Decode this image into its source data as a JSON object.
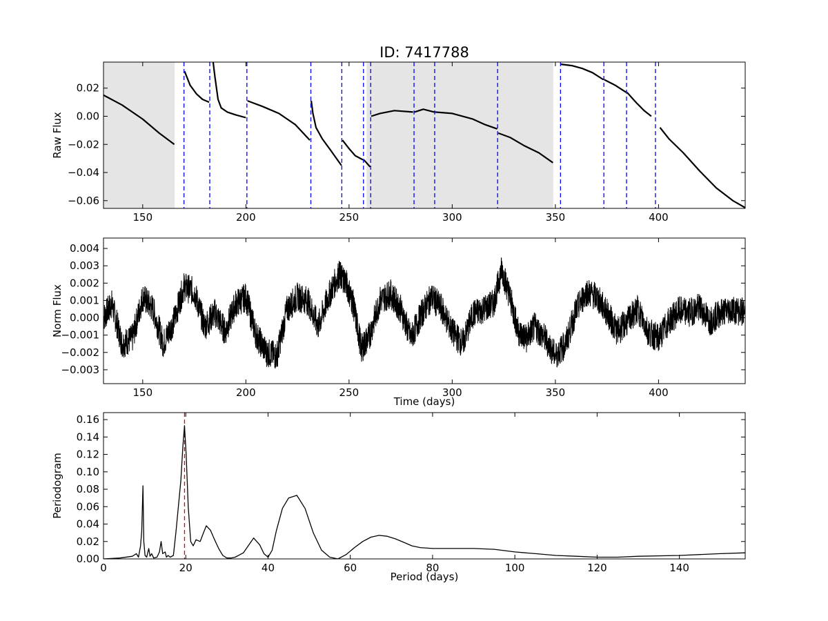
{
  "figure_title": "ID: 7417788",
  "chart_data": [
    {
      "id": "raw",
      "type": "line",
      "title": "ID: 7417788",
      "xlabel": "",
      "ylabel": "Raw Flux",
      "xlim": [
        131,
        442
      ],
      "ylim": [
        -0.0655,
        0.0385
      ],
      "xticks": [
        150,
        200,
        250,
        300,
        350,
        400
      ],
      "yticks": [
        -0.06,
        -0.04,
        -0.02,
        0.0,
        0.02
      ],
      "ytick_labels": [
        "−0.06",
        "−0.04",
        "−0.02",
        "0.00",
        "0.02"
      ],
      "shaded_regions": [
        [
          131,
          165.5
        ],
        [
          258.5,
          349
        ]
      ],
      "vertical_lines": [
        170,
        182.5,
        200.5,
        231.5,
        246.5,
        257,
        260.5,
        281.5,
        291.5,
        322,
        352.5,
        373.5,
        384.5,
        398.5
      ],
      "segments": [
        {
          "x": [
            131,
            140,
            150,
            158,
            165.3
          ],
          "y": [
            0.015,
            0.008,
            -0.002,
            -0.012,
            -0.02
          ]
        },
        {
          "x": [
            170.3,
            173,
            176,
            179,
            182.2
          ],
          "y": [
            0.032,
            0.022,
            0.016,
            0.012,
            0.01
          ]
        },
        {
          "x": [
            184,
            185,
            186.5,
            188,
            191,
            195,
            200
          ],
          "y": [
            0.04,
            0.028,
            0.012,
            0.006,
            0.003,
            0.001,
            -0.001
          ]
        },
        {
          "x": [
            200.8,
            208,
            216,
            224,
            231
          ],
          "y": [
            0.011,
            0.007,
            0.002,
            -0.006,
            -0.017
          ]
        },
        {
          "x": [
            231.7,
            232.5,
            234,
            237,
            241,
            246.3
          ],
          "y": [
            0.011,
            0.002,
            -0.008,
            -0.016,
            -0.024,
            -0.035
          ]
        },
        {
          "x": [
            246.8,
            250,
            253,
            256.8
          ],
          "y": [
            -0.017,
            -0.023,
            -0.028,
            -0.031
          ]
        },
        {
          "x": [
            257.2,
            260.2
          ],
          "y": [
            -0.031,
            -0.036
          ]
        },
        {
          "x": [
            260.7,
            265,
            272,
            281
          ],
          "y": [
            0.0,
            0.002,
            0.004,
            0.003
          ]
        },
        {
          "x": [
            281.7,
            286,
            291.3
          ],
          "y": [
            0.003,
            0.005,
            0.003
          ]
        },
        {
          "x": [
            291.7,
            300,
            310,
            316,
            321.8
          ],
          "y": [
            0.003,
            0.002,
            -0.002,
            -0.006,
            -0.009
          ]
        },
        {
          "x": [
            322.3,
            328,
            335,
            342,
            348.8
          ],
          "y": [
            -0.012,
            -0.015,
            -0.021,
            -0.026,
            -0.033
          ]
        },
        {
          "x": [
            352.7,
            358,
            363,
            368,
            373.3
          ],
          "y": [
            0.037,
            0.036,
            0.034,
            0.031,
            0.026
          ]
        },
        {
          "x": [
            373.7,
            379,
            384.3
          ],
          "y": [
            0.026,
            0.022,
            0.017
          ]
        },
        {
          "x": [
            384.7,
            389,
            393,
            396.5
          ],
          "y": [
            0.017,
            0.01,
            0.004,
            0.0
          ]
        },
        {
          "x": [
            400.7,
            405,
            412,
            420,
            428,
            436,
            442
          ],
          "y": [
            -0.008,
            -0.016,
            -0.026,
            -0.039,
            -0.051,
            -0.06,
            -0.065
          ]
        }
      ]
    },
    {
      "id": "norm",
      "type": "line",
      "xlabel": "Time (days)",
      "ylabel": "Norm Flux",
      "xlim": [
        131,
        442
      ],
      "ylim": [
        -0.0038,
        0.0046
      ],
      "xticks": [
        150,
        200,
        250,
        300,
        350,
        400
      ],
      "yticks": [
        -0.003,
        -0.002,
        -0.001,
        0.0,
        0.001,
        0.002,
        0.003,
        0.004
      ],
      "ytick_labels": [
        "−0.003",
        "−0.002",
        "−0.001",
        "0.000",
        "0.001",
        "0.002",
        "0.003",
        "0.004"
      ],
      "x": [
        131,
        135,
        140,
        145,
        150,
        155,
        160,
        165,
        170,
        175,
        180,
        185,
        190,
        195,
        200,
        205,
        210,
        215,
        220,
        225,
        230,
        235,
        240,
        245,
        248,
        252,
        256,
        260,
        265,
        270,
        275,
        280,
        285,
        290,
        295,
        300,
        305,
        310,
        315,
        320,
        324,
        328,
        332,
        336,
        340,
        345,
        350,
        355,
        360,
        365,
        370,
        375,
        380,
        385,
        390,
        395,
        400,
        405,
        410,
        415,
        420,
        425,
        430,
        435,
        442
      ],
      "y": [
        0.0,
        0.0008,
        -0.0015,
        -0.0012,
        0.0012,
        0.0005,
        -0.0015,
        -0.0002,
        0.0018,
        0.0015,
        -0.0005,
        0.0003,
        -0.0008,
        0.0008,
        0.0012,
        -0.001,
        -0.002,
        -0.0022,
        0.0005,
        0.0012,
        0.001,
        -0.0005,
        0.0012,
        0.0025,
        0.0022,
        0.0008,
        -0.0018,
        -0.001,
        0.001,
        0.0014,
        0.0005,
        -0.0012,
        0.0002,
        0.0012,
        0.0005,
        -0.0008,
        -0.0015,
        0.0002,
        0.0005,
        0.0008,
        0.0028,
        0.0012,
        -0.0008,
        -0.0012,
        -0.0005,
        -0.0012,
        -0.0022,
        -0.0015,
        0.0004,
        0.0015,
        0.0012,
        0.0003,
        -0.0008,
        -0.0002,
        0.0005,
        -0.0008,
        -0.0012,
        -0.0002,
        0.0004,
        0.0003,
        0.0006,
        -0.0002,
        0.0003,
        0.0005,
        0.0003
      ]
    },
    {
      "id": "periodogram",
      "type": "line",
      "xlabel": "Period (days)",
      "ylabel": "Periodogram",
      "xlim": [
        0,
        156
      ],
      "ylim": [
        0,
        0.168
      ],
      "xticks": [
        0,
        20,
        40,
        60,
        80,
        100,
        120,
        140
      ],
      "yticks": [
        0.0,
        0.02,
        0.04,
        0.06,
        0.08,
        0.1,
        0.12,
        0.14,
        0.16
      ],
      "ytick_labels": [
        "0.00",
        "0.02",
        "0.04",
        "0.06",
        "0.08",
        "0.10",
        "0.12",
        "0.14",
        "0.16"
      ],
      "peak_period": 19.7,
      "x": [
        0,
        4,
        7,
        8,
        8.5,
        9,
        9.3,
        9.6,
        9.8,
        10.1,
        10.5,
        11,
        11.3,
        11.7,
        12.2,
        13,
        13.6,
        14,
        14.4,
        15,
        15.3,
        15.7,
        16.2,
        17,
        17.6,
        18.2,
        18.8,
        19.3,
        19.7,
        20.1,
        20.6,
        21.2,
        21.8,
        22.5,
        23.5,
        24.3,
        25,
        26,
        27,
        28,
        29,
        30,
        31,
        32,
        34,
        36.5,
        38,
        39,
        40,
        41,
        42,
        43.5,
        45,
        47,
        49,
        51,
        53,
        55,
        57,
        59,
        61,
        63,
        65,
        67,
        69,
        71,
        73,
        75,
        77,
        80,
        85,
        90,
        95,
        100,
        105,
        110,
        115,
        120,
        125,
        130,
        140,
        150,
        156
      ],
      "y": [
        0.0,
        0.001,
        0.003,
        0.006,
        0.002,
        0.015,
        0.032,
        0.084,
        0.02,
        0.004,
        0.002,
        0.012,
        0.003,
        0.006,
        0.001,
        0.002,
        0.008,
        0.02,
        0.006,
        0.008,
        0.002,
        0.004,
        0.002,
        0.004,
        0.03,
        0.06,
        0.09,
        0.13,
        0.153,
        0.12,
        0.06,
        0.02,
        0.015,
        0.022,
        0.02,
        0.03,
        0.038,
        0.033,
        0.022,
        0.012,
        0.004,
        0.001,
        0.001,
        0.002,
        0.007,
        0.024,
        0.016,
        0.006,
        0.002,
        0.01,
        0.032,
        0.058,
        0.07,
        0.073,
        0.058,
        0.03,
        0.01,
        0.002,
        0.0,
        0.005,
        0.013,
        0.02,
        0.025,
        0.027,
        0.026,
        0.023,
        0.019,
        0.015,
        0.013,
        0.012,
        0.012,
        0.012,
        0.011,
        0.008,
        0.006,
        0.004,
        0.003,
        0.002,
        0.002,
        0.003,
        0.004,
        0.006,
        0.007
      ]
    }
  ]
}
